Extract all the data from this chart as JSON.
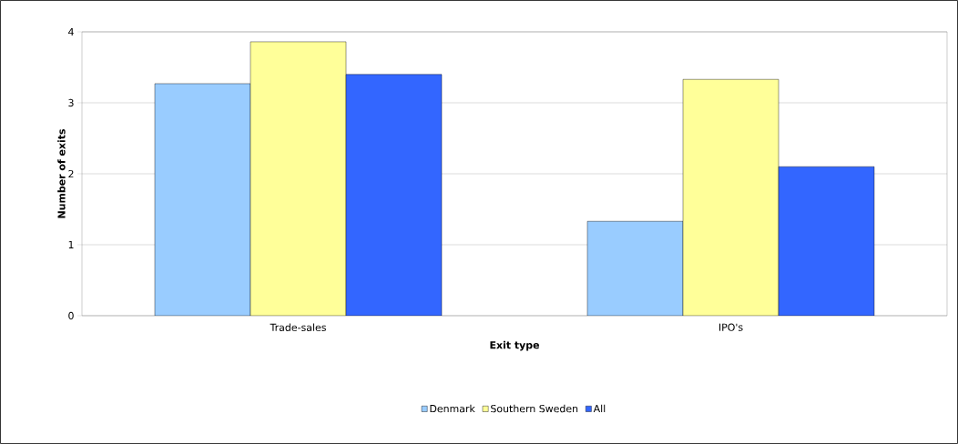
{
  "chart_data": {
    "type": "bar",
    "xlabel": "Exit type",
    "ylabel": "Number of exits",
    "categories": [
      "Trade-sales",
      "IPO's"
    ],
    "series": [
      {
        "name": "Denmark",
        "color": "#99ccff",
        "values": [
          3.27,
          1.33
        ]
      },
      {
        "name": "Southern Sweden",
        "color": "#ffff99",
        "values": [
          3.86,
          3.33
        ]
      },
      {
        "name": "All",
        "color": "#3366ff",
        "values": [
          3.4,
          2.1
        ]
      }
    ],
    "ylim": [
      0,
      4
    ],
    "yticks": [
      0,
      1,
      2,
      3,
      4
    ],
    "grid": "y",
    "legend": "bottom"
  }
}
